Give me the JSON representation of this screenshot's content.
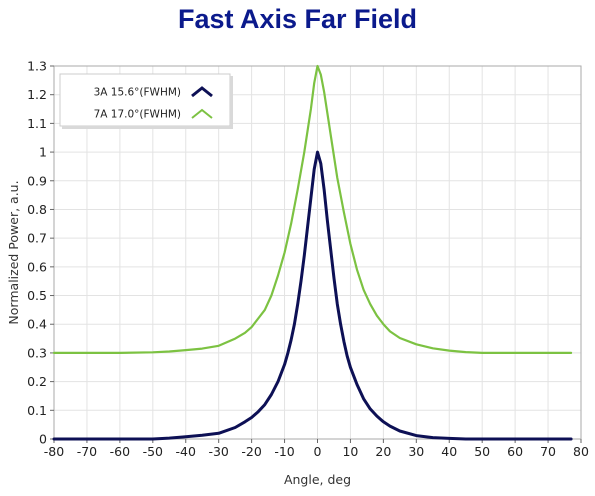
{
  "chart_data": {
    "type": "line",
    "title": "Fast Axis Far Field",
    "xlabel": "Angle, deg",
    "ylabel": "Normalized Power, a.u.",
    "xlim": [
      -80,
      80
    ],
    "ylim": [
      0,
      1.3
    ],
    "x_ticks": [
      -80,
      -70,
      -60,
      -50,
      -40,
      -30,
      -20,
      -10,
      0,
      10,
      20,
      30,
      40,
      50,
      60,
      70,
      80
    ],
    "x_tick_labels": [
      "-80",
      "-70",
      "-60",
      "-50",
      "-40",
      "-30",
      "-20",
      "-10",
      "0",
      "10",
      "20",
      "30",
      "40",
      "50",
      "60",
      "70",
      "80"
    ],
    "y_ticks": [
      0,
      0.1,
      0.2,
      0.3,
      0.4,
      0.5,
      0.6,
      0.7,
      0.8,
      0.9,
      1,
      1.1,
      1.2,
      1.3
    ],
    "y_tick_labels": [
      "0",
      "0.1",
      "0.2",
      "0.3",
      "0.4",
      "0.5",
      "0.6",
      "0.7",
      "0.8",
      "0.9",
      "1",
      "1.1",
      "1.2",
      "1.3"
    ],
    "grid": true,
    "legend_position": "top-left",
    "series": [
      {
        "name": "3A 15.6°(FWHM)",
        "color": "#0d1055",
        "x": [
          -80,
          -70,
          -60,
          -50,
          -45,
          -40,
          -35,
          -30,
          -25,
          -22,
          -20,
          -18,
          -16,
          -14,
          -12,
          -10,
          -9,
          -8,
          -7,
          -6,
          -5,
          -4,
          -3,
          -2,
          -1,
          0,
          1,
          2,
          3,
          4,
          5,
          6,
          7,
          8,
          9,
          10,
          12,
          14,
          16,
          18,
          20,
          22,
          25,
          30,
          35,
          40,
          45,
          50,
          60,
          70,
          77
        ],
        "y": [
          0,
          0,
          0,
          0,
          0.003,
          0.008,
          0.013,
          0.02,
          0.04,
          0.06,
          0.075,
          0.095,
          0.12,
          0.155,
          0.2,
          0.26,
          0.3,
          0.345,
          0.4,
          0.47,
          0.55,
          0.64,
          0.74,
          0.84,
          0.94,
          1.0,
          0.96,
          0.87,
          0.76,
          0.66,
          0.56,
          0.47,
          0.4,
          0.34,
          0.29,
          0.25,
          0.19,
          0.14,
          0.105,
          0.08,
          0.06,
          0.045,
          0.028,
          0.012,
          0.005,
          0.002,
          0,
          0,
          0,
          0,
          0
        ]
      },
      {
        "name": "7A 17.0°(FWHM)",
        "color": "#7cc242",
        "x": [
          -80,
          -70,
          -60,
          -50,
          -45,
          -40,
          -35,
          -30,
          -25,
          -22,
          -20,
          -18,
          -16,
          -14,
          -12,
          -10,
          -8,
          -6,
          -4,
          -2,
          -1,
          0,
          1,
          2,
          4,
          6,
          8,
          10,
          12,
          14,
          16,
          18,
          20,
          22,
          25,
          30,
          35,
          40,
          45,
          50,
          60,
          70,
          77
        ],
        "y": [
          0.3,
          0.3,
          0.3,
          0.302,
          0.305,
          0.31,
          0.315,
          0.325,
          0.35,
          0.37,
          0.39,
          0.42,
          0.45,
          0.5,
          0.57,
          0.65,
          0.75,
          0.87,
          1.0,
          1.15,
          1.24,
          1.3,
          1.27,
          1.21,
          1.06,
          0.91,
          0.79,
          0.68,
          0.59,
          0.52,
          0.47,
          0.43,
          0.4,
          0.375,
          0.352,
          0.33,
          0.316,
          0.308,
          0.303,
          0.3,
          0.3,
          0.3,
          0.3
        ]
      }
    ]
  }
}
